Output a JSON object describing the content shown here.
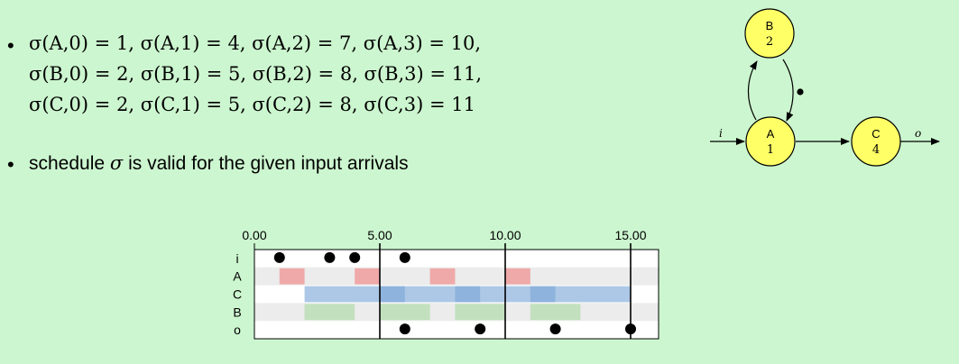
{
  "bullets": {
    "line1": "σ(A,0) = 1, σ(A,1) = 4, σ(A,2) = 7, σ(A,3) = 10,",
    "line2": "σ(B,0) = 2, σ(B,1) = 5, σ(B,2) = 8, σ(B,3) = 11,",
    "line3": "σ(C,0) = 2, σ(C,1) = 5, σ(C,2) = 8, σ(C,3) = 11",
    "line4_prefix": "schedule ",
    "line4_sigma": "σ",
    "line4_suffix": " is valid for the given input arrivals",
    "bullet_char": "•"
  },
  "graph": {
    "nodes": [
      {
        "name": "B",
        "exec_time": "2"
      },
      {
        "name": "A",
        "exec_time": "1"
      },
      {
        "name": "C",
        "exec_time": "4"
      }
    ],
    "input_label": "i",
    "output_label": "o",
    "node_color": "#ffff66"
  },
  "chart_data": {
    "type": "gantt",
    "rows": [
      "i",
      "A",
      "C",
      "B",
      "o"
    ],
    "x_ticks": [
      "0.00",
      "5.00",
      "10.00",
      "15.00"
    ],
    "xlim": [
      0,
      16
    ],
    "period_lines": [
      5,
      10,
      15
    ],
    "input_tokens": [
      1,
      3,
      4,
      6
    ],
    "output_tokens": [
      6,
      9,
      12,
      15
    ],
    "A_firings": [
      [
        1,
        2
      ],
      [
        4,
        5
      ],
      [
        7,
        8
      ],
      [
        10,
        11
      ]
    ],
    "C_firings": [
      [
        2,
        6
      ],
      [
        5,
        9
      ],
      [
        8,
        12
      ],
      [
        11,
        15
      ]
    ],
    "B_firings": [
      [
        2,
        4
      ],
      [
        5,
        7
      ],
      [
        8,
        10
      ],
      [
        11,
        13
      ]
    ],
    "colors": {
      "A": "#f08080",
      "C": "#7ba6d6",
      "B": "#a8d8a0",
      "row_light": "#ffffff",
      "row_dark": "#ececec"
    }
  }
}
